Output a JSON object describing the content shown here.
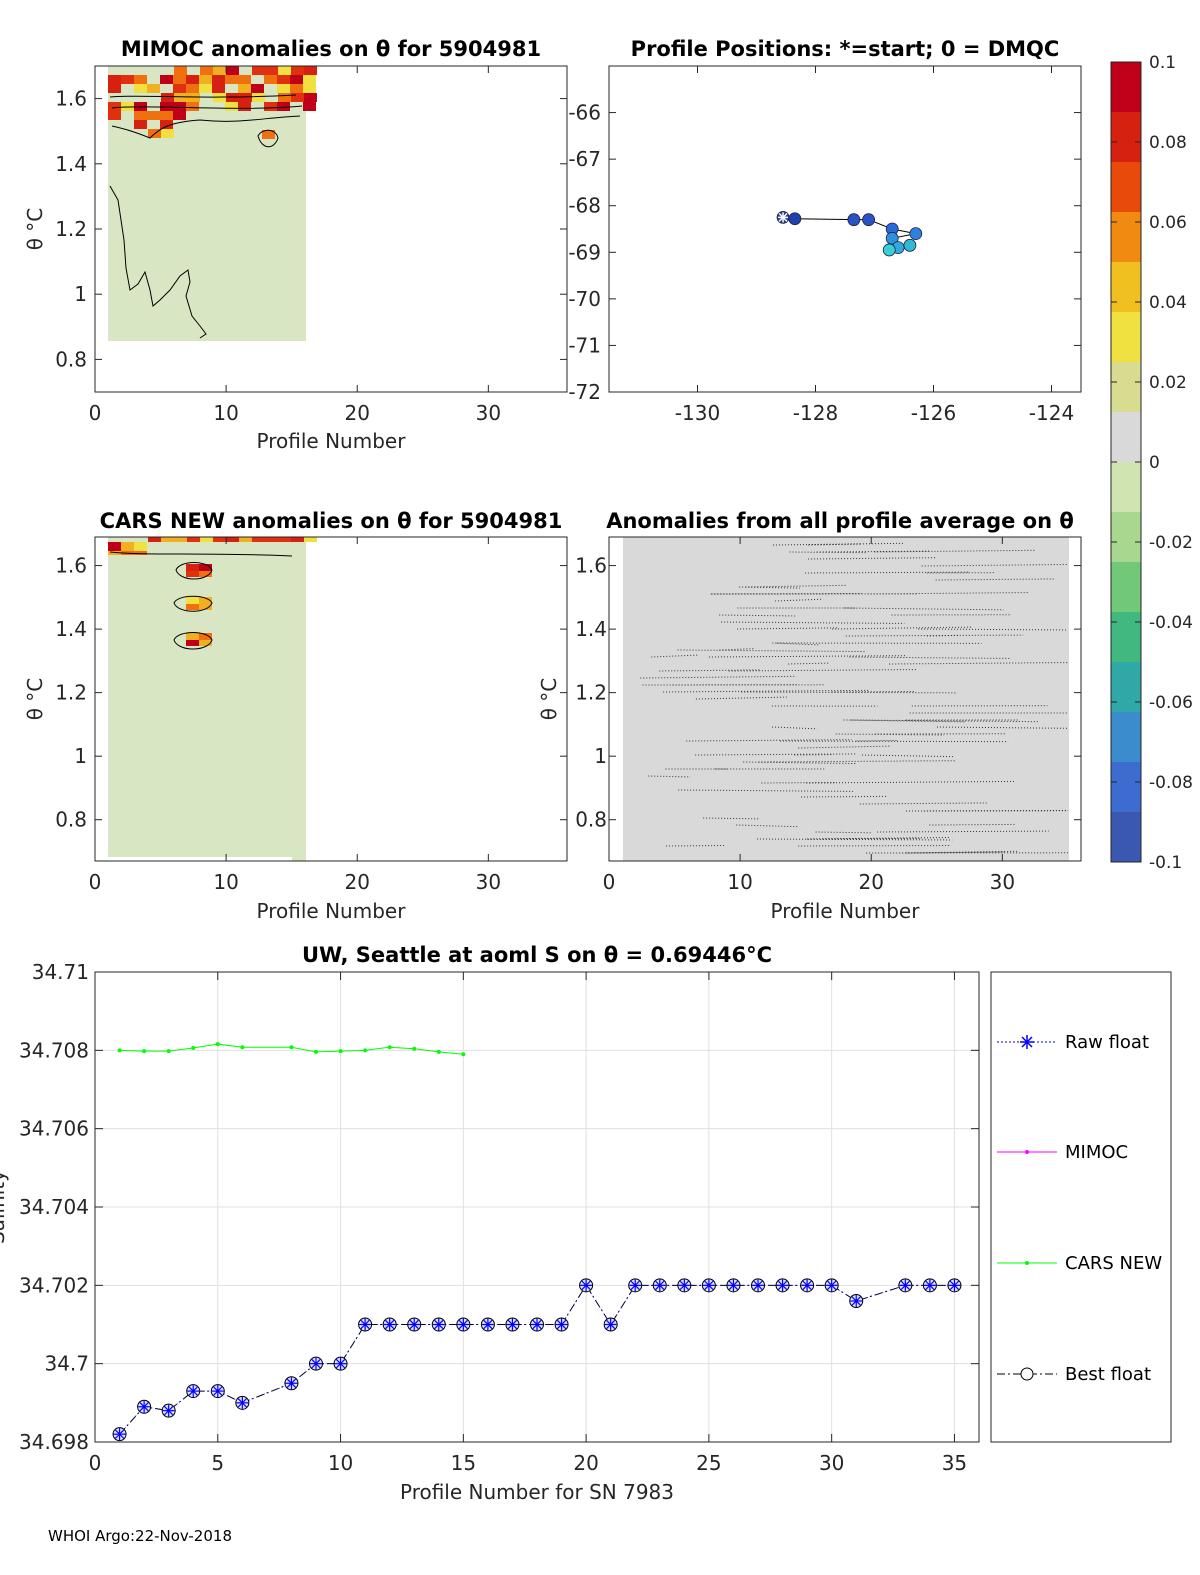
{
  "footer": "WHOI Argo:22-Nov-2018",
  "colorbar": {
    "ticks": [
      "0.1",
      "0.08",
      "0.06",
      "0.04",
      "0.02",
      "0",
      "-0.02",
      "-0.04",
      "-0.06",
      "-0.08",
      "-0.1"
    ],
    "colors": [
      "#c00018",
      "#d62010",
      "#e84a0a",
      "#f08a10",
      "#f0c020",
      "#f0e040",
      "#d8dc90",
      "#d9d9d9",
      "#cfe4b0",
      "#a8d890",
      "#70c878",
      "#40b880",
      "#30a8a8",
      "#3a8ccc",
      "#3c6cd0",
      "#3a58b0"
    ]
  },
  "chart_data": [
    {
      "id": "mimoc",
      "type": "heatmap",
      "title": "MIMOC anomalies on θ  for 5904981",
      "xlabel": "Profile Number",
      "ylabel": "θ °C",
      "xlim": [
        0,
        36
      ],
      "ylim": [
        0.7,
        1.7
      ],
      "xticks": [
        "0",
        "10",
        "20",
        "30"
      ],
      "yticks": [
        "0.8",
        "1",
        "1.2",
        "1.4",
        "1.6"
      ],
      "data_profiles": [
        1,
        16
      ],
      "data_theta": [
        0.84,
        1.69
      ],
      "background": "#d8e6c4"
    },
    {
      "id": "positions",
      "type": "scatter",
      "title": "Profile Positions: *=start; 0 = DMQC",
      "xlabel": "",
      "ylabel": "",
      "xlim": [
        -131.5,
        -123.5
      ],
      "ylim": [
        -72,
        -65
      ],
      "xticks": [
        "-130",
        "-128",
        "-126",
        "-124"
      ],
      "yticks": [
        "-66",
        "-67",
        "-68",
        "-69",
        "-70",
        "-71",
        "-72"
      ],
      "points": [
        {
          "x": -128.55,
          "y": -68.25,
          "color": "#2a3a9c"
        },
        {
          "x": -128.35,
          "y": -68.28,
          "color": "#2040b0"
        },
        {
          "x": -127.35,
          "y": -68.3,
          "color": "#2a52c8"
        },
        {
          "x": -127.1,
          "y": -68.3,
          "color": "#2a52c8"
        },
        {
          "x": -126.7,
          "y": -68.5,
          "color": "#2a6ad8"
        },
        {
          "x": -126.3,
          "y": -68.6,
          "color": "#2e80e0"
        },
        {
          "x": -126.7,
          "y": -68.7,
          "color": "#3090e0"
        },
        {
          "x": -126.6,
          "y": -68.9,
          "color": "#30a8e0"
        },
        {
          "x": -126.4,
          "y": -68.85,
          "color": "#30b8d8"
        },
        {
          "x": -126.75,
          "y": -68.95,
          "color": "#38d0d8"
        }
      ]
    },
    {
      "id": "cars",
      "type": "heatmap",
      "title": "CARS NEW anomalies on θ for 5904981",
      "xlabel": "Profile Number",
      "ylabel": "θ °C",
      "xlim": [
        0,
        36
      ],
      "ylim": [
        0.67,
        1.69
      ],
      "xticks": [
        "0",
        "10",
        "20",
        "30"
      ],
      "yticks": [
        "0.8",
        "1",
        "1.2",
        "1.4",
        "1.6"
      ],
      "data_profiles": [
        1,
        16
      ],
      "data_theta": [
        0.69,
        1.69
      ],
      "background": "#d8e6c4"
    },
    {
      "id": "allavg",
      "type": "heatmap",
      "title": "Anomalies from all profile average on θ",
      "xlabel": "Profile Number",
      "ylabel": "θ °C",
      "xlim": [
        0,
        36
      ],
      "ylim": [
        0.67,
        1.69
      ],
      "xticks": [
        "0",
        "10",
        "20",
        "30"
      ],
      "yticks": [
        "0.8",
        "1",
        "1.2",
        "1.4",
        "1.6"
      ],
      "data_profiles": [
        1,
        35
      ],
      "data_theta": [
        0.67,
        1.69
      ],
      "background": "#d9d9d9"
    },
    {
      "id": "salinity",
      "type": "line",
      "title": "UW, Seattle at aoml S on θ = 0.69446°C",
      "xlabel": "Profile Number for SN 7983",
      "ylabel": "Salinity",
      "xlim": [
        0,
        36
      ],
      "ylim": [
        34.698,
        34.71
      ],
      "xticks": [
        "0",
        "5",
        "10",
        "15",
        "20",
        "25",
        "30",
        "35"
      ],
      "yticks": [
        "34.698",
        "34.7",
        "34.702",
        "34.704",
        "34.706",
        "34.708",
        "34.71"
      ],
      "grid": true,
      "legend": [
        "Raw float",
        "MIMOC",
        "CARS NEW",
        "Best float"
      ],
      "legend_position": "right",
      "series": [
        {
          "name": "CARS NEW",
          "color": "#00ff00",
          "x": [
            1,
            2,
            3,
            4,
            5,
            6,
            8,
            9,
            10,
            11,
            12,
            13,
            14,
            15
          ],
          "y": [
            34.708,
            34.70798,
            34.70798,
            34.70806,
            34.70816,
            34.70808,
            34.70808,
            34.70796,
            34.70798,
            34.708,
            34.70808,
            34.70804,
            34.70796,
            34.7079
          ]
        },
        {
          "name": "Best float",
          "color": "#000000",
          "x": [
            1,
            2,
            3,
            4,
            5,
            6,
            8,
            9,
            10,
            11,
            12,
            13,
            14,
            15,
            16,
            17,
            18,
            19,
            20,
            21,
            22,
            23,
            24,
            25,
            26,
            27,
            28,
            29,
            30,
            31,
            33,
            34,
            35
          ],
          "y": [
            34.6982,
            34.6989,
            34.6988,
            34.6993,
            34.6993,
            34.699,
            34.6995,
            34.7,
            34.7,
            34.701,
            34.701,
            34.701,
            34.701,
            34.701,
            34.701,
            34.701,
            34.701,
            34.701,
            34.702,
            34.701,
            34.702,
            34.702,
            34.702,
            34.702,
            34.702,
            34.702,
            34.702,
            34.702,
            34.702,
            34.7016,
            34.702,
            34.702,
            34.702
          ]
        }
      ]
    }
  ]
}
